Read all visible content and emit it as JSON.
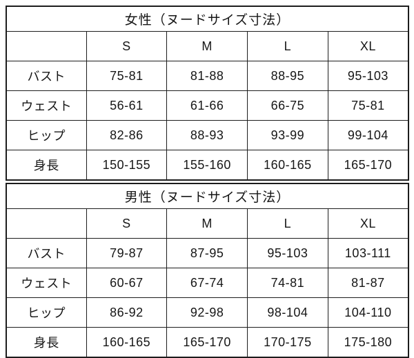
{
  "tables": [
    {
      "title": "女性（ヌードサイズ寸法）",
      "size_headers": [
        "S",
        "M",
        "L",
        "XL"
      ],
      "rows": [
        {
          "label": "バスト",
          "values": [
            "75-81",
            "81-88",
            "88-95",
            "95-103"
          ]
        },
        {
          "label": "ウェスト",
          "values": [
            "56-61",
            "61-66",
            "66-75",
            "75-81"
          ]
        },
        {
          "label": "ヒップ",
          "values": [
            "82-86",
            "88-93",
            "93-99",
            "99-104"
          ]
        },
        {
          "label": "身長",
          "values": [
            "150-155",
            "155-160",
            "160-165",
            "165-170"
          ]
        }
      ]
    },
    {
      "title": "男性（ヌードサイズ寸法）",
      "size_headers": [
        "S",
        "M",
        "L",
        "XL"
      ],
      "rows": [
        {
          "label": "バスト",
          "values": [
            "79-87",
            "87-95",
            "95-103",
            "103-111"
          ]
        },
        {
          "label": "ウェスト",
          "values": [
            "60-67",
            "67-74",
            "74-81",
            "81-87"
          ]
        },
        {
          "label": "ヒップ",
          "values": [
            "86-92",
            "92-98",
            "98-104",
            "104-110"
          ]
        },
        {
          "label": "身長",
          "values": [
            "160-165",
            "165-170",
            "170-175",
            "175-180"
          ]
        }
      ]
    }
  ],
  "colors": {
    "border": "#1c1c1c",
    "text": "#161616",
    "background": "#ffffff"
  }
}
